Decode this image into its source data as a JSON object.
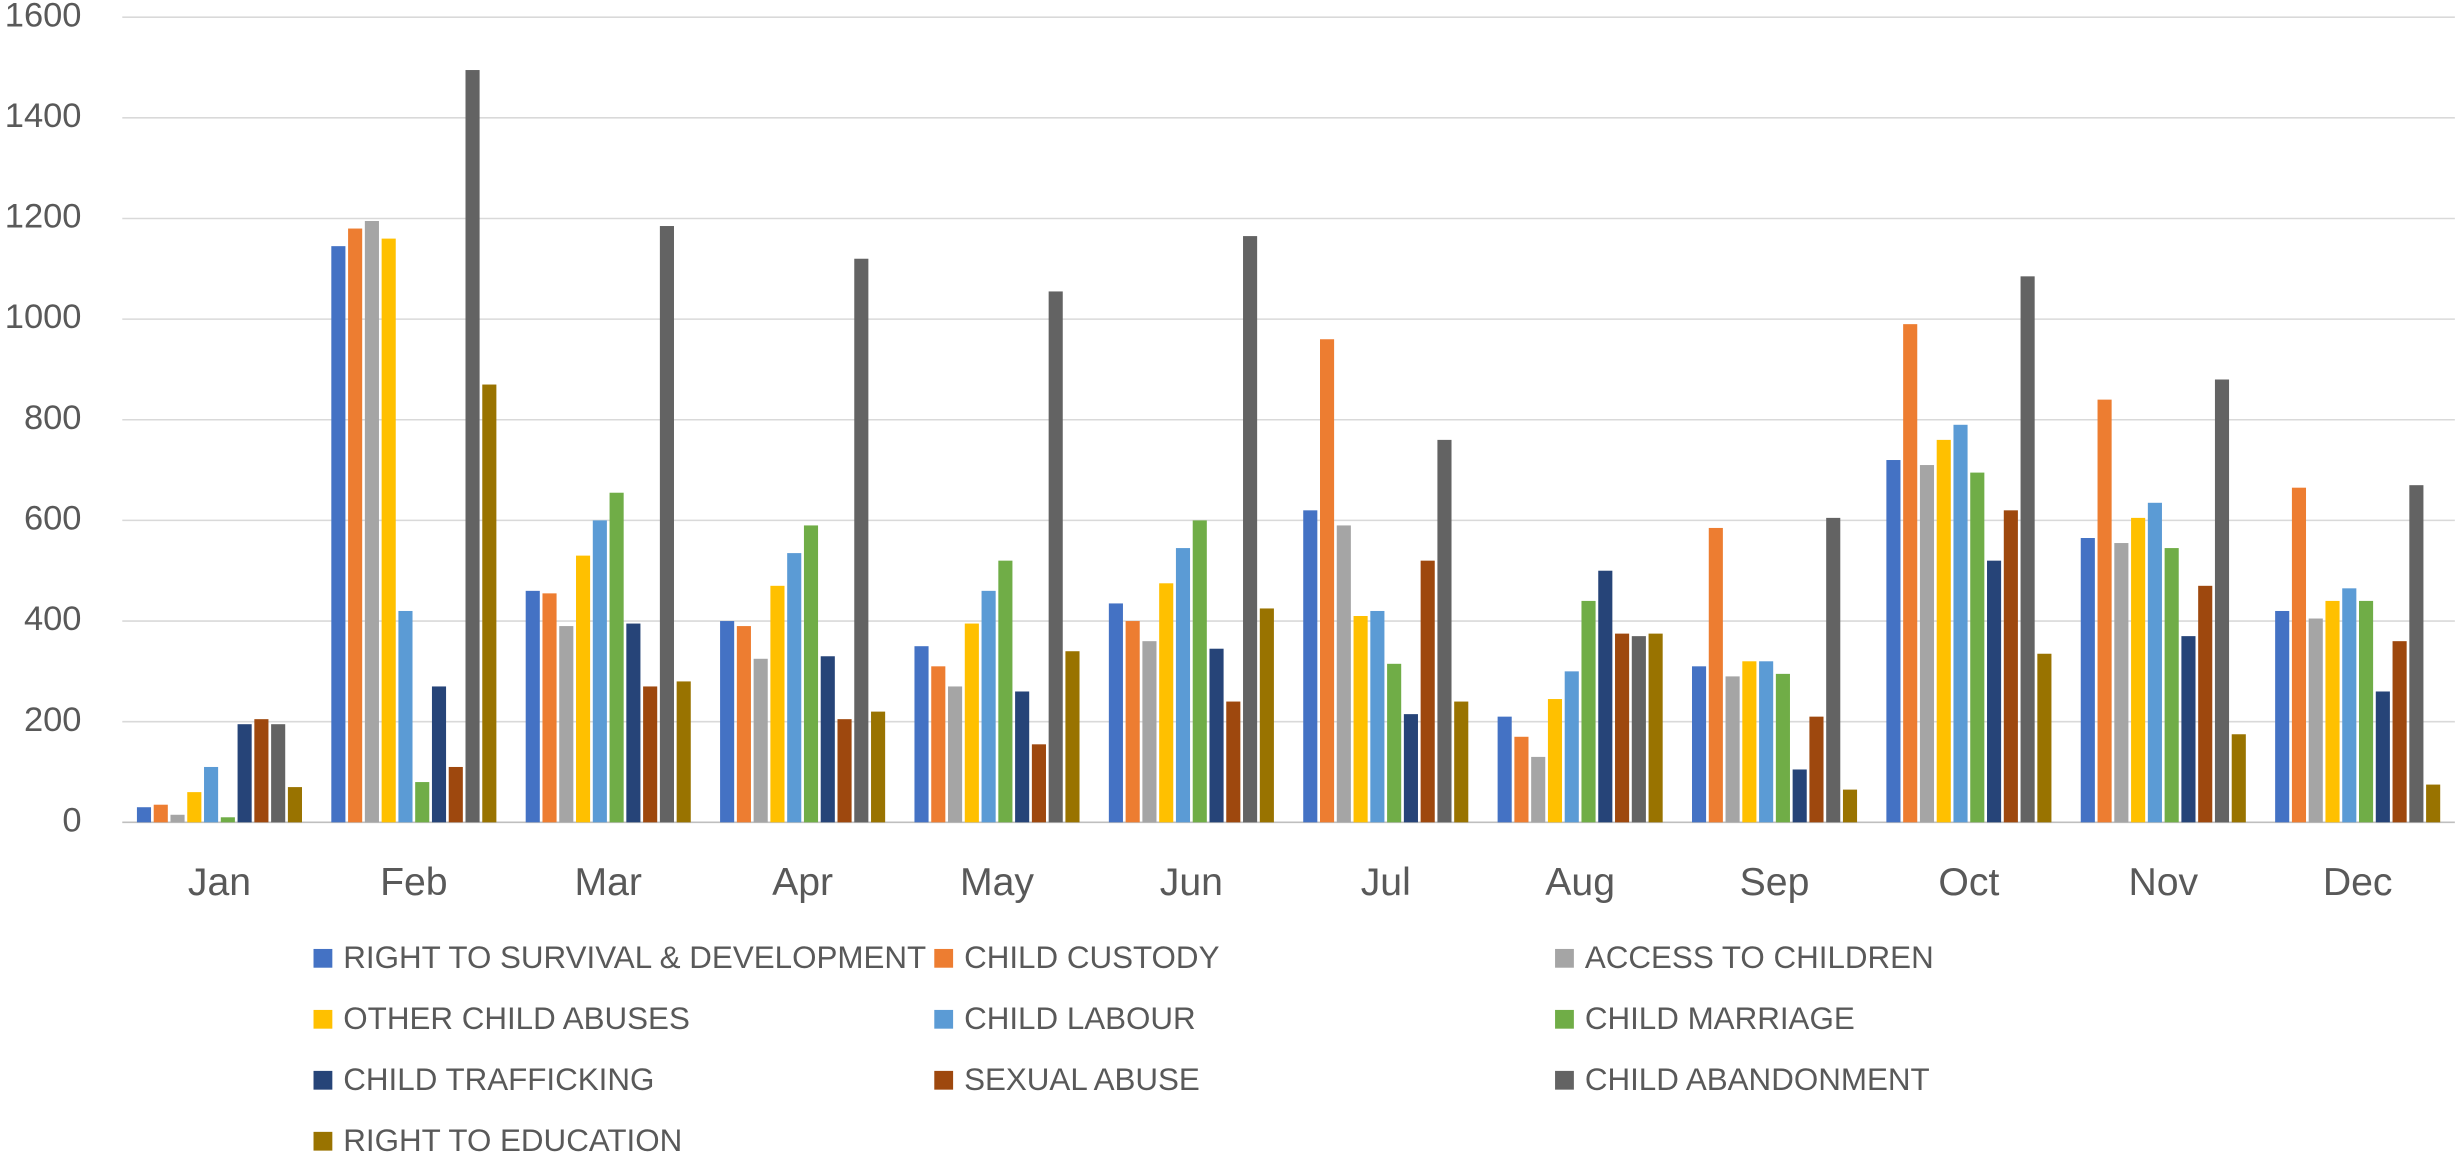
{
  "chart_data": {
    "type": "bar",
    "categories": [
      "Jan",
      "Feb",
      "Mar",
      "Apr",
      "May",
      "Jun",
      "Jul",
      "Aug",
      "Sep",
      "Oct",
      "Nov",
      "Dec"
    ],
    "ylim": [
      0,
      1600
    ],
    "yticks": [
      0,
      200,
      400,
      600,
      800,
      1000,
      1200,
      1400,
      1600
    ],
    "grid": true,
    "series": [
      {
        "name": "RIGHT TO SURVIVAL & DEVELOPMENT",
        "color": "#4472c4",
        "values": [
          30,
          1145,
          460,
          400,
          350,
          435,
          620,
          210,
          310,
          720,
          565,
          420
        ]
      },
      {
        "name": "CHILD CUSTODY",
        "color": "#ed7d31",
        "values": [
          35,
          1180,
          455,
          390,
          310,
          400,
          960,
          170,
          585,
          990,
          840,
          665
        ]
      },
      {
        "name": "ACCESS TO CHILDREN",
        "color": "#a5a5a5",
        "values": [
          15,
          1195,
          390,
          325,
          270,
          360,
          590,
          130,
          290,
          710,
          555,
          405
        ]
      },
      {
        "name": "OTHER CHILD ABUSES",
        "color": "#ffc000",
        "values": [
          60,
          1160,
          530,
          470,
          395,
          475,
          410,
          245,
          320,
          760,
          605,
          440
        ]
      },
      {
        "name": "CHILD LABOUR",
        "color": "#5b9bd5",
        "values": [
          110,
          420,
          600,
          535,
          460,
          545,
          420,
          300,
          320,
          790,
          635,
          465
        ]
      },
      {
        "name": "CHILD MARRIAGE",
        "color": "#70ad47",
        "values": [
          10,
          80,
          655,
          590,
          520,
          600,
          315,
          440,
          295,
          695,
          545,
          440
        ]
      },
      {
        "name": "CHILD TRAFFICKING",
        "color": "#264478",
        "values": [
          195,
          270,
          395,
          330,
          260,
          345,
          215,
          500,
          105,
          520,
          370,
          260
        ]
      },
      {
        "name": "SEXUAL ABUSE",
        "color": "#9e480e",
        "values": [
          205,
          110,
          270,
          205,
          155,
          240,
          520,
          375,
          210,
          620,
          470,
          360
        ]
      },
      {
        "name": "CHILD ABANDONMENT",
        "color": "#636363",
        "values": [
          195,
          1495,
          1185,
          1120,
          1055,
          1165,
          760,
          370,
          605,
          1085,
          880,
          670
        ]
      },
      {
        "name": "RIGHT TO EDUCATION",
        "color": "#997300",
        "values": [
          70,
          870,
          280,
          220,
          340,
          425,
          240,
          375,
          65,
          335,
          175,
          75
        ]
      }
    ]
  }
}
